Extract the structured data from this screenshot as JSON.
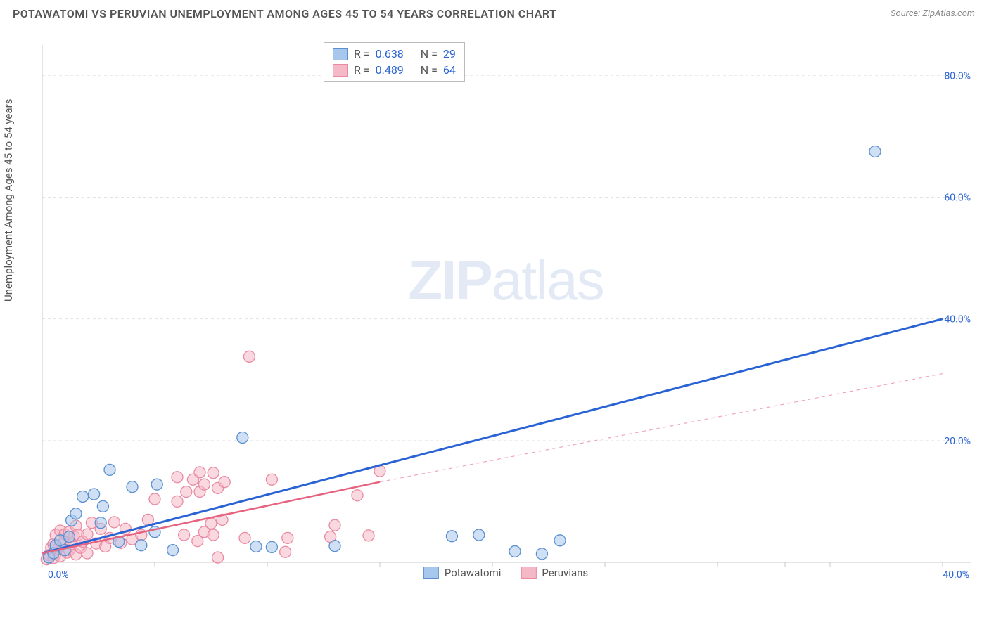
{
  "title": "POTAWATOMI VS PERUVIAN UNEMPLOYMENT AMONG AGES 45 TO 54 YEARS CORRELATION CHART",
  "source": "Source: ZipAtlas.com",
  "watermark_zip": "ZIP",
  "watermark_atlas": "atlas",
  "y_axis_label": "Unemployment Among Ages 45 to 54 years",
  "chart": {
    "type": "scatter",
    "xlim": [
      0,
      40
    ],
    "ylim": [
      0,
      85
    ],
    "x_ticks": [
      0,
      5,
      10,
      15,
      20,
      25,
      30,
      33,
      35,
      40
    ],
    "x_tick_labels": {
      "0": "0.0%",
      "40": "40.0%"
    },
    "y_ticks": [
      20,
      40,
      60,
      80
    ],
    "y_tick_labels": {
      "20": "20.0%",
      "40": "40.0%",
      "60": "60.0%",
      "80": "80.0%"
    },
    "grid_color": "#e3e3e3",
    "axis_color": "#c8c8c8",
    "background_color": "#ffffff",
    "tick_label_color": "#2a63d4",
    "tick_label_fontsize": 14,
    "marker_radius": 8,
    "marker_opacity": 0.55,
    "series": [
      {
        "name": "Potawatomi",
        "color_fill": "#a8c7ec",
        "color_stroke": "#5b8fd0",
        "R": "0.638",
        "N": "29",
        "trend": {
          "x1": 0,
          "y1": 1.5,
          "x2": 40,
          "y2": 40,
          "width": 3,
          "dash": null,
          "color": "#2a63d4"
        },
        "points": [
          [
            0.3,
            0.8
          ],
          [
            0.5,
            1.5
          ],
          [
            0.6,
            2.8
          ],
          [
            0.8,
            3.6
          ],
          [
            1.0,
            2.0
          ],
          [
            1.2,
            4.2
          ],
          [
            1.3,
            6.9
          ],
          [
            1.5,
            8.0
          ],
          [
            1.8,
            10.8
          ],
          [
            2.3,
            11.2
          ],
          [
            2.6,
            6.5
          ],
          [
            2.7,
            9.2
          ],
          [
            3.0,
            15.2
          ],
          [
            3.4,
            3.4
          ],
          [
            4.0,
            12.4
          ],
          [
            4.4,
            2.8
          ],
          [
            5.0,
            5.0
          ],
          [
            5.1,
            12.8
          ],
          [
            5.8,
            2.0
          ],
          [
            8.9,
            20.5
          ],
          [
            9.5,
            2.6
          ],
          [
            10.2,
            2.5
          ],
          [
            13.0,
            2.7
          ],
          [
            18.2,
            4.3
          ],
          [
            19.4,
            4.5
          ],
          [
            21.0,
            1.8
          ],
          [
            22.2,
            1.4
          ],
          [
            23.0,
            3.6
          ],
          [
            37.0,
            67.5
          ]
        ]
      },
      {
        "name": "Peruvians",
        "color_fill": "#f5b8c6",
        "color_stroke": "#e98aa2",
        "R": "0.489",
        "N": "64",
        "trend_solid": {
          "x1": 0,
          "y1": 1.5,
          "x2": 15,
          "y2": 13.2,
          "width": 2.5,
          "color": "#e7627f"
        },
        "trend_dash": {
          "x1": 15,
          "y1": 13.2,
          "x2": 40,
          "y2": 31,
          "width": 1.2,
          "dash": "5,5",
          "color": "#f0a6b6"
        },
        "points": [
          [
            0.2,
            0.5
          ],
          [
            0.3,
            1.2
          ],
          [
            0.4,
            2.4
          ],
          [
            0.5,
            0.7
          ],
          [
            0.5,
            3.0
          ],
          [
            0.6,
            1.5
          ],
          [
            0.6,
            4.5
          ],
          [
            0.7,
            2.2
          ],
          [
            0.8,
            1.0
          ],
          [
            0.8,
            5.2
          ],
          [
            0.9,
            3.0
          ],
          [
            1.0,
            4.6
          ],
          [
            1.0,
            3.4
          ],
          [
            1.1,
            1.6
          ],
          [
            1.2,
            2.0
          ],
          [
            1.2,
            5.0
          ],
          [
            1.3,
            3.0
          ],
          [
            1.4,
            4.3
          ],
          [
            1.5,
            1.3
          ],
          [
            1.5,
            6.0
          ],
          [
            1.6,
            4.5
          ],
          [
            1.7,
            2.4
          ],
          [
            1.8,
            3.4
          ],
          [
            2.0,
            4.6
          ],
          [
            2.0,
            1.5
          ],
          [
            2.2,
            6.5
          ],
          [
            2.4,
            3.1
          ],
          [
            2.6,
            5.5
          ],
          [
            2.8,
            2.6
          ],
          [
            3.0,
            4.0
          ],
          [
            3.2,
            6.6
          ],
          [
            3.5,
            3.2
          ],
          [
            3.7,
            5.5
          ],
          [
            4.0,
            3.8
          ],
          [
            4.4,
            4.5
          ],
          [
            4.7,
            7.0
          ],
          [
            5.0,
            10.4
          ],
          [
            6.0,
            14.0
          ],
          [
            6.0,
            10.0
          ],
          [
            6.3,
            4.5
          ],
          [
            6.4,
            11.6
          ],
          [
            6.7,
            13.6
          ],
          [
            6.9,
            3.5
          ],
          [
            7.0,
            11.6
          ],
          [
            7.0,
            14.8
          ],
          [
            7.2,
            5.0
          ],
          [
            7.2,
            12.8
          ],
          [
            7.5,
            6.4
          ],
          [
            7.6,
            14.7
          ],
          [
            7.6,
            4.5
          ],
          [
            7.8,
            12.2
          ],
          [
            7.8,
            0.8
          ],
          [
            8.0,
            7.0
          ],
          [
            8.1,
            13.2
          ],
          [
            9.0,
            4.0
          ],
          [
            9.2,
            33.8
          ],
          [
            10.2,
            13.6
          ],
          [
            10.8,
            1.7
          ],
          [
            10.9,
            4.0
          ],
          [
            12.8,
            4.2
          ],
          [
            13.0,
            6.1
          ],
          [
            14.0,
            11.0
          ],
          [
            15.0,
            15.0
          ],
          [
            14.5,
            4.4
          ]
        ]
      }
    ]
  },
  "legend_bottom": [
    {
      "label": "Potawatomi",
      "fill": "#a8c7ec",
      "stroke": "#5b8fd0"
    },
    {
      "label": "Peruvians",
      "fill": "#f5b8c6",
      "stroke": "#e98aa2"
    }
  ],
  "stat_box": {
    "rows": [
      {
        "fill": "#a8c7ec",
        "stroke": "#5b8fd0",
        "R": "0.638",
        "N": "29"
      },
      {
        "fill": "#f5b8c6",
        "stroke": "#e98aa2",
        "R": "0.489",
        "N": "64"
      }
    ]
  }
}
